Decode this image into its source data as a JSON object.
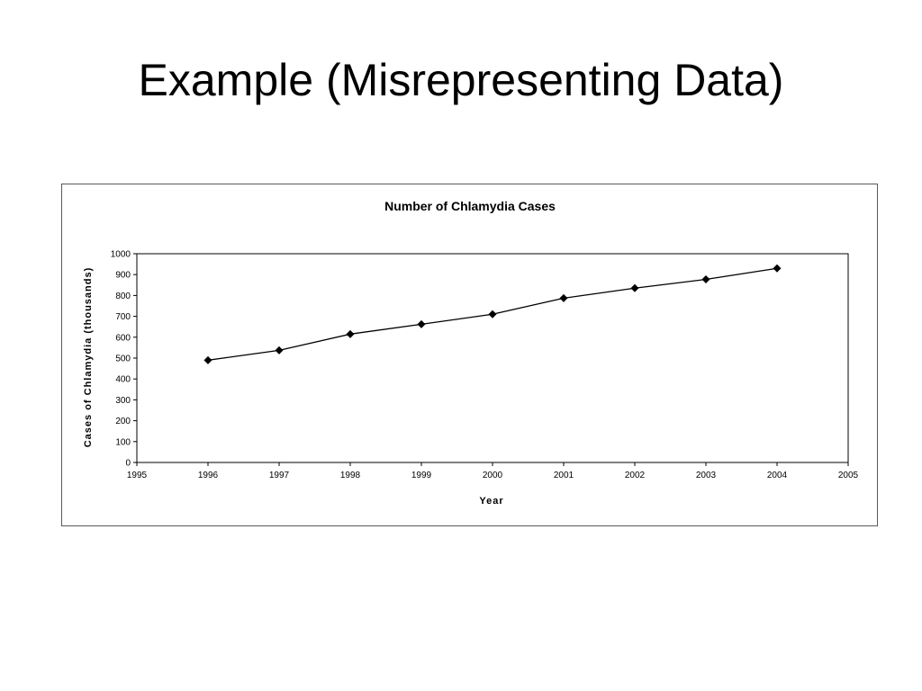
{
  "slide": {
    "title": "Example (Misrepresenting Data)"
  },
  "chart_data": {
    "type": "line",
    "title": "Number of Chlamydia Cases",
    "xlabel": "Year",
    "ylabel": "Cases of Chlamydia (thousands)",
    "xlim": [
      1995,
      2005
    ],
    "ylim": [
      0,
      1000
    ],
    "xticks": [
      1995,
      1996,
      1997,
      1998,
      1999,
      2000,
      2001,
      2002,
      2003,
      2004,
      2005
    ],
    "yticks": [
      0,
      100,
      200,
      300,
      400,
      500,
      600,
      700,
      800,
      900,
      1000
    ],
    "grid": false,
    "marker": "diamond",
    "series": [
      {
        "x": [
          1996,
          1997,
          1998,
          1999,
          2000,
          2001,
          2002,
          2003,
          2004
        ],
        "y": [
          490,
          537,
          615,
          662,
          710,
          787,
          835,
          877,
          930
        ]
      }
    ],
    "colors": {
      "line": "#000000",
      "marker": "#000000",
      "axis": "#000000",
      "frame": "#5a5a5a"
    }
  }
}
